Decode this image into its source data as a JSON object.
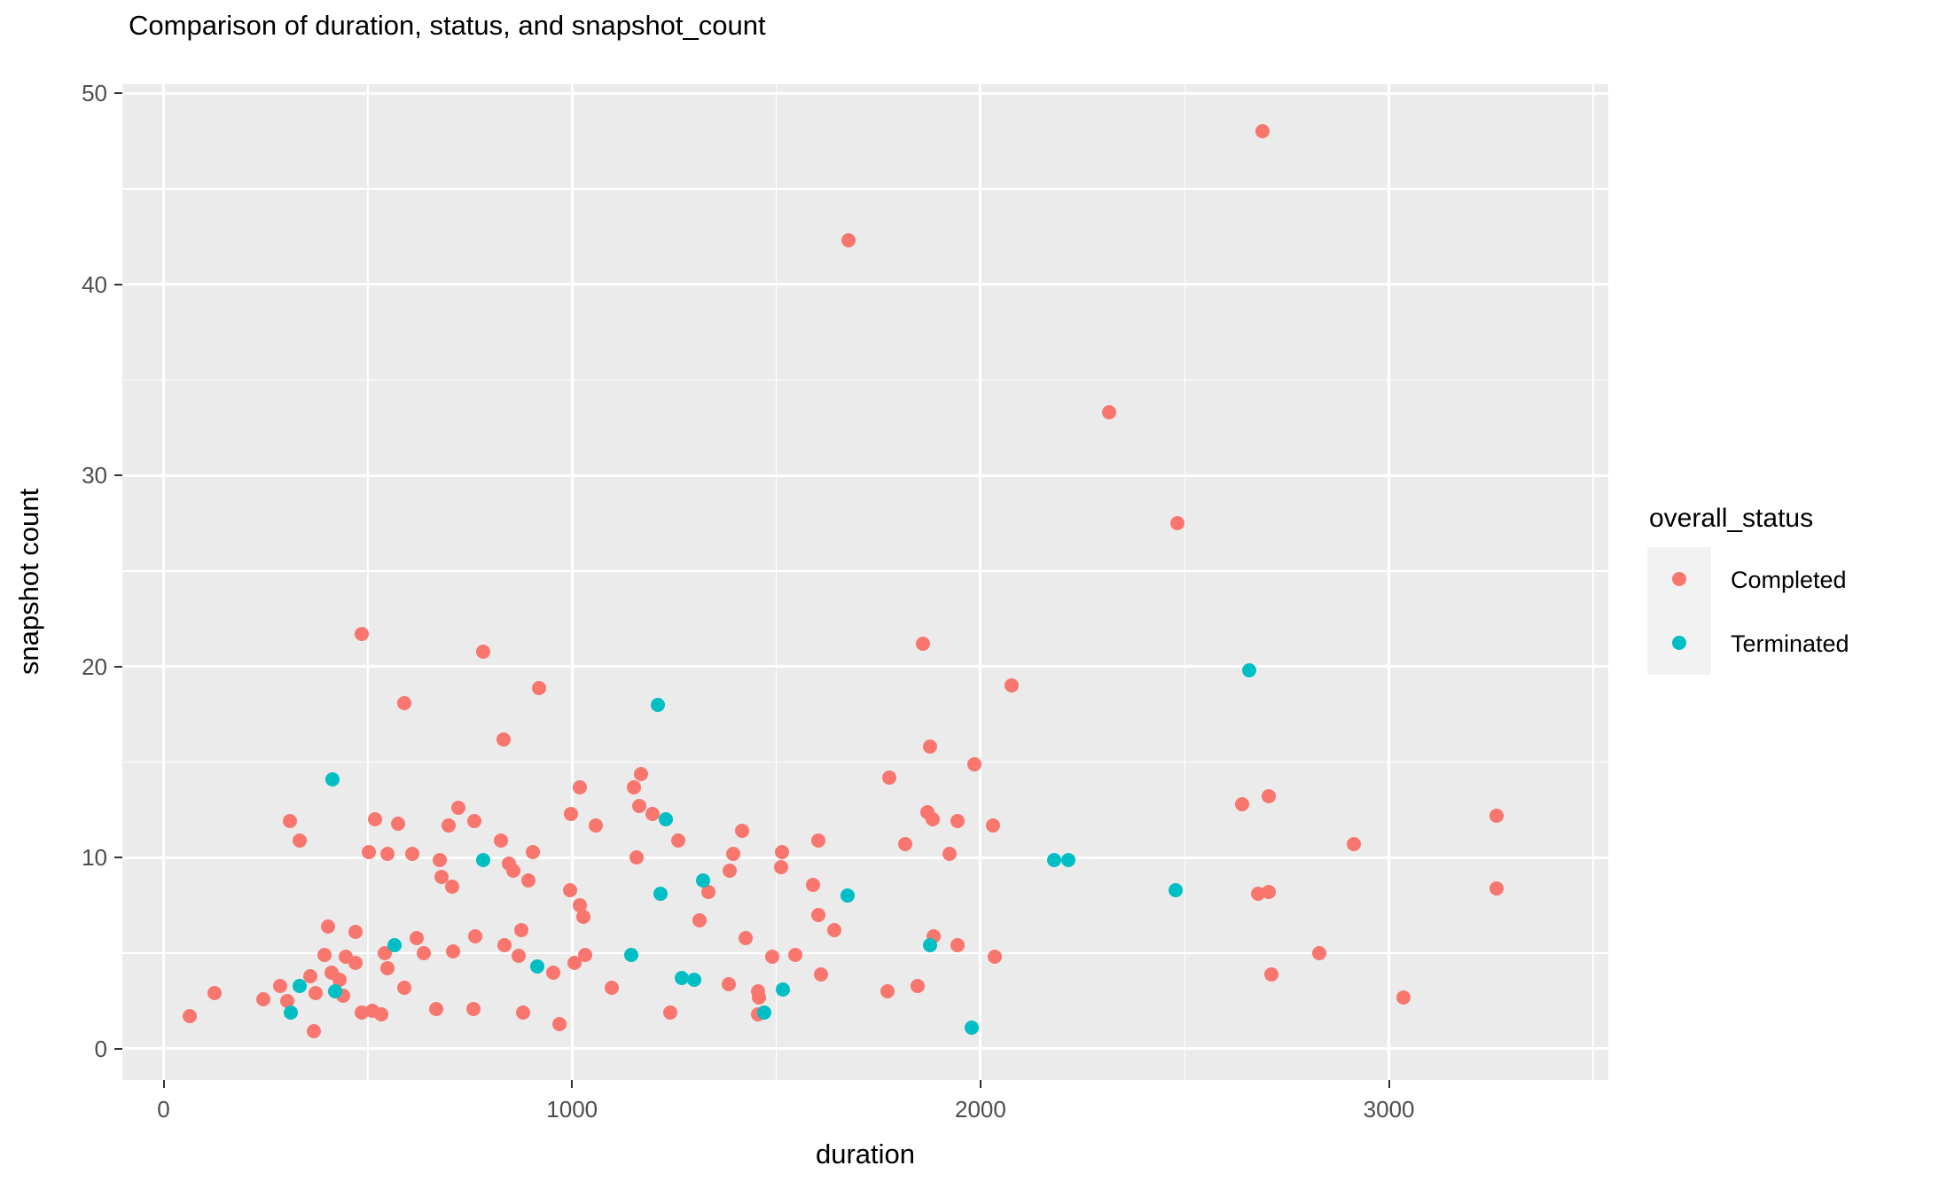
{
  "title": "Comparison of duration, status, and snapshot_count",
  "colors": {
    "panel_background": "#EBEBEB",
    "gridline": "#FFFFFF",
    "axis_text": "#4D4D4D",
    "tick_mark": "#333333",
    "legend_key_background": "#F2F2F2",
    "completed": "#F8766D",
    "terminated": "#00BFC4"
  },
  "chart_data": {
    "type": "scatter",
    "title": "Comparison of duration, status, and snapshot_count",
    "xlabel": "duration",
    "ylabel": "snapshot count",
    "x_domain": [
      -101,
      3537
    ],
    "y_domain": [
      -1.63,
      50.48
    ],
    "x_major_ticks": [
      0,
      1000,
      2000,
      3000
    ],
    "x_minor_gridlines": [
      500,
      1500,
      2500,
      3500
    ],
    "y_major_ticks": [
      0,
      10,
      20,
      30,
      40,
      50
    ],
    "y_minor_gridlines": [
      5,
      15,
      25,
      35,
      45
    ],
    "grid": "on",
    "legend": {
      "title": "overall_status",
      "position": "right",
      "entries": [
        {
          "label": "Completed",
          "color": "#F8766D"
        },
        {
          "label": "Terminated",
          "color": "#00BFC4"
        }
      ]
    },
    "series": [
      {
        "name": "Completed",
        "color": "#F8766D",
        "points": [
          [
            63,
            1.7
          ],
          [
            124,
            2.9
          ],
          [
            245,
            2.6
          ],
          [
            286,
            3.3
          ],
          [
            303,
            2.5
          ],
          [
            360,
            3.8
          ],
          [
            372,
            2.9
          ],
          [
            367,
            0.9
          ],
          [
            411,
            4.0
          ],
          [
            430,
            3.6
          ],
          [
            440,
            2.8
          ],
          [
            485,
            1.9
          ],
          [
            512,
            2.0
          ],
          [
            532,
            1.8
          ],
          [
            393,
            4.9
          ],
          [
            402,
            6.4
          ],
          [
            447,
            4.8
          ],
          [
            469,
            6.1
          ],
          [
            470,
            4.5
          ],
          [
            541,
            5.0
          ],
          [
            548,
            4.2
          ],
          [
            589,
            3.2
          ],
          [
            620,
            5.8
          ],
          [
            637,
            5.0
          ],
          [
            708,
            5.1
          ],
          [
            762,
            5.9
          ],
          [
            834,
            5.4
          ],
          [
            870,
            4.85
          ],
          [
            875,
            6.2
          ],
          [
            668,
            2.1
          ],
          [
            758,
            2.1
          ],
          [
            880,
            1.9
          ],
          [
            970,
            1.3
          ],
          [
            955,
            4.0
          ],
          [
            1005,
            4.5
          ],
          [
            1032,
            4.9
          ],
          [
            1098,
            3.2
          ],
          [
            995,
            8.3
          ],
          [
            1020,
            7.5
          ],
          [
            1028,
            6.9
          ],
          [
            677,
            9.9
          ],
          [
            681,
            9.0
          ],
          [
            706,
            8.5
          ],
          [
            845,
            9.7
          ],
          [
            856,
            9.3
          ],
          [
            893,
            8.8
          ],
          [
            310,
            11.9
          ],
          [
            333,
            10.9
          ],
          [
            502,
            10.3
          ],
          [
            549,
            10.2
          ],
          [
            608,
            10.2
          ],
          [
            517,
            12.0
          ],
          [
            573,
            11.8
          ],
          [
            698,
            11.7
          ],
          [
            722,
            12.6
          ],
          [
            761,
            11.9
          ],
          [
            826,
            10.9
          ],
          [
            905,
            10.3
          ],
          [
            485,
            21.7
          ],
          [
            590,
            18.1
          ],
          [
            782,
            20.8
          ],
          [
            832,
            16.2
          ],
          [
            920,
            18.9
          ],
          [
            1018,
            13.7
          ],
          [
            997,
            12.3
          ],
          [
            1058,
            11.7
          ],
          [
            1151,
            13.7
          ],
          [
            1169,
            14.4
          ],
          [
            1165,
            12.7
          ],
          [
            1198,
            12.3
          ],
          [
            1261,
            10.9
          ],
          [
            1158,
            10.0
          ],
          [
            1334,
            8.2
          ],
          [
            1313,
            6.7
          ],
          [
            1384,
            3.4
          ],
          [
            1386,
            9.3
          ],
          [
            1395,
            10.2
          ],
          [
            1417,
            11.4
          ],
          [
            1426,
            5.8
          ],
          [
            1455,
            3.0
          ],
          [
            1457,
            2.7
          ],
          [
            1455,
            1.8
          ],
          [
            1241,
            1.9
          ],
          [
            1491,
            4.8
          ],
          [
            1511,
            9.5
          ],
          [
            1513,
            10.3
          ],
          [
            1547,
            4.9
          ],
          [
            1590,
            8.6
          ],
          [
            1602,
            10.9
          ],
          [
            1602,
            7.0
          ],
          [
            1610,
            3.9
          ],
          [
            1641,
            6.2
          ],
          [
            1773,
            3.0
          ],
          [
            1777,
            14.2
          ],
          [
            1815,
            10.7
          ],
          [
            1845,
            3.3
          ],
          [
            1860,
            21.2
          ],
          [
            1871,
            12.4
          ],
          [
            1877,
            15.8
          ],
          [
            1882,
            12.0
          ],
          [
            1885,
            5.9
          ],
          [
            1925,
            10.2
          ],
          [
            1943,
            11.9
          ],
          [
            1943,
            5.4
          ],
          [
            1985,
            14.9
          ],
          [
            2030,
            11.7
          ],
          [
            2034,
            4.8
          ],
          [
            2077,
            19.0
          ],
          [
            1677,
            42.3
          ],
          [
            2314,
            33.3
          ],
          [
            2483,
            27.5
          ],
          [
            2690,
            48.0
          ],
          [
            2641,
            12.8
          ],
          [
            2705,
            13.2
          ],
          [
            2680,
            8.1
          ],
          [
            2705,
            8.2
          ],
          [
            2712,
            3.9
          ],
          [
            2830,
            5.0
          ],
          [
            2915,
            10.7
          ],
          [
            3035,
            2.7
          ],
          [
            3264,
            12.2
          ],
          [
            3264,
            8.4
          ]
        ]
      },
      {
        "name": "Terminated",
        "color": "#00BFC4",
        "points": [
          [
            312,
            1.9
          ],
          [
            333,
            3.3
          ],
          [
            414,
            14.1
          ],
          [
            421,
            3.0
          ],
          [
            565,
            5.4
          ],
          [
            782,
            9.9
          ],
          [
            915,
            4.3
          ],
          [
            1144,
            4.9
          ],
          [
            1209,
            18.0
          ],
          [
            1216,
            8.1
          ],
          [
            1229,
            12.0
          ],
          [
            1268,
            3.7
          ],
          [
            1299,
            3.6
          ],
          [
            1321,
            8.8
          ],
          [
            1471,
            1.9
          ],
          [
            1516,
            3.1
          ],
          [
            1675,
            8.0
          ],
          [
            1877,
            5.4
          ],
          [
            1979,
            1.1
          ],
          [
            2180,
            9.9
          ],
          [
            2214,
            9.9
          ],
          [
            2478,
            8.3
          ],
          [
            2658,
            19.8
          ]
        ]
      }
    ]
  }
}
